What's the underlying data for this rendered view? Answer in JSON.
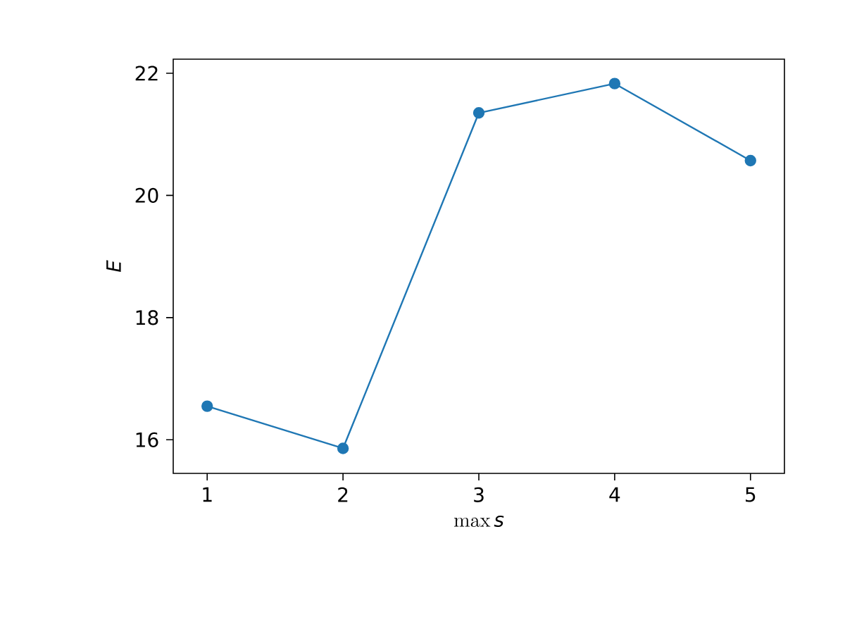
{
  "chart_data": {
    "type": "line",
    "xlabel": "\\max s",
    "ylabel": "E",
    "x": [
      1,
      2,
      3,
      4,
      5
    ],
    "series": [
      {
        "color": "#1f77b4",
        "values": [
          16.55,
          15.86,
          21.35,
          21.83,
          20.57
        ]
      }
    ],
    "xlim": [
      0.75,
      5.25
    ],
    "ylim": [
      15.45,
      22.23
    ],
    "xticks": [
      1,
      2,
      3,
      4,
      5
    ],
    "yticks": [
      16,
      18,
      20,
      22
    ],
    "marker": "circle",
    "line_style": "solid",
    "grid": false
  }
}
